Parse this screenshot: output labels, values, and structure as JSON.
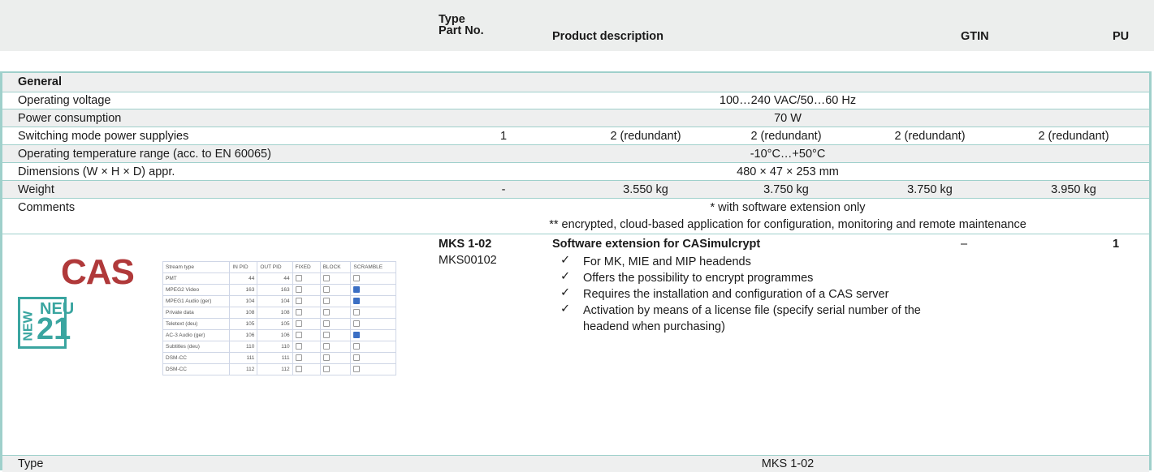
{
  "header": {
    "type_label": "Type",
    "part_no_label": "Part No.",
    "description_label": "Product description",
    "gtin_label": "GTIN",
    "pu_label": "PU"
  },
  "table": {
    "section": "General",
    "rows": [
      {
        "label": "Operating voltage",
        "value": "100…240 VAC/50…60 Hz"
      },
      {
        "label": "Power consumption",
        "value": "70 W"
      },
      {
        "label": "Switching mode power supplyies",
        "cells": [
          "1",
          "2 (redundant)",
          "2 (redundant)",
          "2 (redundant)",
          "2 (redundant)"
        ]
      },
      {
        "label": "Operating temperature range (acc. to EN 60065)",
        "value": "-10°C…+50°C"
      },
      {
        "label": "Dimensions (W × H × D) appr.",
        "value": "480 × 47 × 253 mm"
      },
      {
        "label": "Weight",
        "cells": [
          "-",
          "3.550 kg",
          "3.750 kg",
          "3.750 kg",
          "3.950 kg"
        ]
      },
      {
        "label": "Comments",
        "lines": [
          "* with software extension only",
          "** encrypted, cloud-based application for configuration, monitoring and remote maintenance"
        ]
      }
    ]
  },
  "product": {
    "image": {
      "logo": "CAS",
      "badge_new": "NEW",
      "badge_neu": "NEU",
      "badge_year": "21",
      "mini_table": {
        "headers": [
          "Stream type",
          "IN PID",
          "OUT PID",
          "FIXED",
          "BLOCK",
          "SCRAMBLE"
        ],
        "rows": [
          [
            "PMT",
            "44",
            "44",
            false
          ],
          [
            "MPEG2 Video",
            "163",
            "163",
            true
          ],
          [
            "MPEG1 Audio (ger)",
            "104",
            "104",
            true
          ],
          [
            "Private data",
            "108",
            "108",
            false
          ],
          [
            "Teletext (deu)",
            "105",
            "105",
            false
          ],
          [
            "AC-3 Audio (ger)",
            "106",
            "106",
            true
          ],
          [
            "Subtitles (deu)",
            "110",
            "110",
            false
          ],
          [
            "DSM-CC",
            "111",
            "111",
            false
          ],
          [
            "DSM-CC",
            "112",
            "112",
            false
          ]
        ]
      }
    },
    "type": "MKS 1-02",
    "part_no": "MKS00102",
    "title": "Software extension for CASimulcrypt",
    "bullets": [
      "For MK, MIE  and  MIP headends",
      "Offers the possibility to encrypt programmes",
      "Requires the installation and configuration of a CAS server",
      "Activation by means of a license file (specify serial number of the headend when purchasing)"
    ],
    "gtin": "–",
    "pu": "1"
  },
  "footer_row": {
    "label": "Type",
    "value": "MKS 1-02"
  }
}
